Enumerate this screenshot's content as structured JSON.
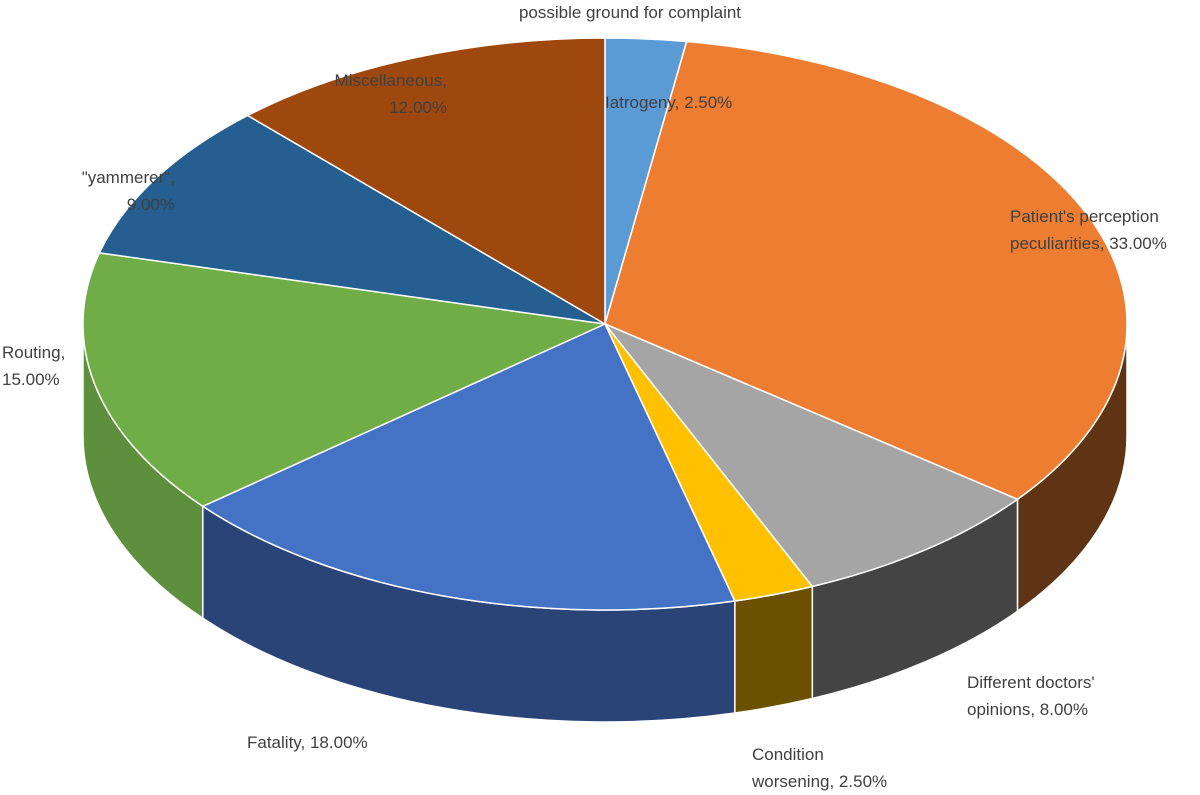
{
  "chart_data": {
    "type": "pie",
    "style": "3d-tilted",
    "title": "possible ground for complaint",
    "slices": [
      {
        "label": "Iatrogeny",
        "value": 2.5,
        "display": "2.50%",
        "color": "#5B9BD5",
        "side_color": "#3E6F9E"
      },
      {
        "label": "Patient's perception peculiarities",
        "value": 33.0,
        "display": "33.00%",
        "color": "#ED7D31",
        "side_color": "#5E3415"
      },
      {
        "label": "Different doctors' opinions",
        "value": 8.0,
        "display": "8.00%",
        "color": "#A5A5A5",
        "side_color": "#444444"
      },
      {
        "label": "Condition worsening",
        "value": 2.5,
        "display": "2.50%",
        "color": "#FFC000",
        "side_color": "#6B5000"
      },
      {
        "label": "Fatality",
        "value": 18.0,
        "display": "18.00%",
        "color": "#4472C4",
        "side_color": "#2B4478"
      },
      {
        "label": "Routing",
        "value": 15.0,
        "display": "15.00%",
        "color": "#70AD47",
        "side_color": "#5E8F3C"
      },
      {
        "label": "\"yammerer\"",
        "value": 9.0,
        "display": "9.00%",
        "color": "#255E91",
        "side_color": "#1A4468"
      },
      {
        "label": "Miscellaneous",
        "value": 12.0,
        "display": "12.00%",
        "color": "#9E480E",
        "side_color": "#5E2B08"
      }
    ],
    "labels_text": [
      [
        "Iatrogeny, 2.50%"
      ],
      [
        "Patient's perception",
        "peculiarities, 33.00%"
      ],
      [
        "Different doctors'",
        "opinions, 8.00%"
      ],
      [
        "Condition",
        "worsening, 2.50%"
      ],
      [
        "Fatality, 18.00%"
      ],
      [
        "Routing,",
        "15.00%"
      ],
      [
        "\"yammerer\",",
        "9.00%"
      ],
      [
        "Miscellaneous,",
        "12.00%"
      ]
    ],
    "legend": "none"
  }
}
